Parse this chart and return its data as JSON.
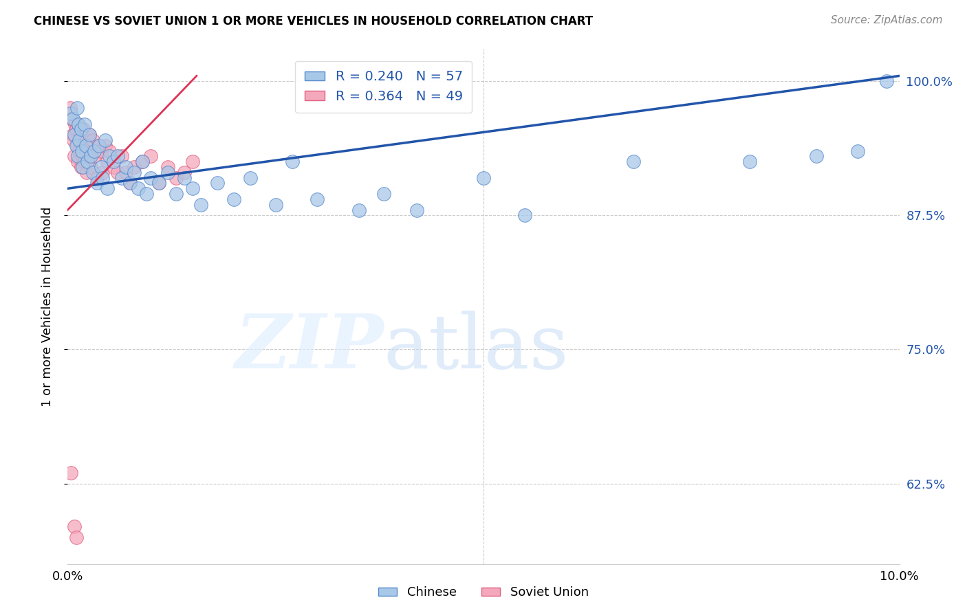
{
  "title": "CHINESE VS SOVIET UNION 1 OR MORE VEHICLES IN HOUSEHOLD CORRELATION CHART",
  "source": "Source: ZipAtlas.com",
  "ylabel": "1 or more Vehicles in Household",
  "xlim": [
    0.0,
    10.0
  ],
  "ylim": [
    55.0,
    103.0
  ],
  "yticks": [
    62.5,
    75.0,
    87.5,
    100.0
  ],
  "ytick_labels": [
    "62.5%",
    "75.0%",
    "87.5%",
    "100.0%"
  ],
  "xticks": [
    0.0,
    1.25,
    2.5,
    3.75,
    5.0,
    6.25,
    7.5,
    8.75,
    10.0
  ],
  "chinese_color": "#a8c8e8",
  "soviet_color": "#f4a8bc",
  "chinese_edge_color": "#5588cc",
  "soviet_edge_color": "#e06080",
  "chinese_line_color": "#2255aa",
  "soviet_line_color": "#dd3355",
  "R_chinese": 0.24,
  "N_chinese": 57,
  "R_soviet": 0.364,
  "N_soviet": 49,
  "background_color": "#ffffff",
  "chinese_x": [
    0.04,
    0.06,
    0.08,
    0.1,
    0.11,
    0.12,
    0.13,
    0.14,
    0.16,
    0.17,
    0.18,
    0.2,
    0.22,
    0.24,
    0.26,
    0.28,
    0.3,
    0.32,
    0.35,
    0.38,
    0.4,
    0.42,
    0.45,
    0.48,
    0.5,
    0.55,
    0.6,
    0.65,
    0.7,
    0.75,
    0.8,
    0.85,
    0.9,
    0.95,
    1.0,
    1.1,
    1.2,
    1.3,
    1.4,
    1.5,
    1.6,
    1.8,
    2.0,
    2.2,
    2.5,
    2.7,
    3.0,
    3.5,
    3.8,
    4.2,
    5.0,
    5.5,
    6.8,
    8.2,
    9.0,
    9.5,
    9.85
  ],
  "chinese_y": [
    97.0,
    96.5,
    95.0,
    94.0,
    97.5,
    93.0,
    96.0,
    94.5,
    95.5,
    93.5,
    92.0,
    96.0,
    94.0,
    92.5,
    95.0,
    93.0,
    91.5,
    93.5,
    90.5,
    94.0,
    92.0,
    91.0,
    94.5,
    90.0,
    93.0,
    92.5,
    93.0,
    91.0,
    92.0,
    90.5,
    91.5,
    90.0,
    92.5,
    89.5,
    91.0,
    90.5,
    91.5,
    89.5,
    91.0,
    90.0,
    88.5,
    90.5,
    89.0,
    91.0,
    88.5,
    92.5,
    89.0,
    88.0,
    89.5,
    88.0,
    91.0,
    87.5,
    92.5,
    92.5,
    93.0,
    93.5,
    100.0
  ],
  "soviet_x": [
    0.03,
    0.05,
    0.06,
    0.07,
    0.08,
    0.09,
    0.1,
    0.11,
    0.12,
    0.13,
    0.14,
    0.15,
    0.16,
    0.17,
    0.18,
    0.19,
    0.2,
    0.21,
    0.22,
    0.23,
    0.24,
    0.25,
    0.26,
    0.28,
    0.3,
    0.32,
    0.35,
    0.38,
    0.4,
    0.42,
    0.45,
    0.48,
    0.5,
    0.55,
    0.6,
    0.65,
    0.7,
    0.75,
    0.8,
    0.9,
    1.0,
    1.1,
    1.2,
    1.3,
    1.4,
    1.5,
    0.04,
    0.08,
    0.1
  ],
  "soviet_y": [
    97.5,
    96.5,
    95.0,
    94.5,
    93.0,
    96.0,
    95.5,
    94.0,
    92.5,
    96.0,
    93.5,
    95.0,
    92.0,
    94.5,
    93.0,
    95.5,
    92.5,
    94.0,
    93.5,
    91.5,
    94.5,
    93.0,
    95.0,
    92.0,
    94.5,
    93.0,
    91.0,
    94.0,
    93.5,
    91.5,
    94.0,
    92.5,
    93.5,
    92.0,
    91.5,
    93.0,
    91.5,
    90.5,
    92.0,
    92.5,
    93.0,
    90.5,
    92.0,
    91.0,
    91.5,
    92.5,
    63.5,
    58.5,
    57.5
  ],
  "chinese_trend_x": [
    0.0,
    10.0
  ],
  "chinese_trend_y": [
    90.0,
    100.5
  ],
  "soviet_trend_x": [
    0.0,
    1.55
  ],
  "soviet_trend_y": [
    88.0,
    100.5
  ]
}
